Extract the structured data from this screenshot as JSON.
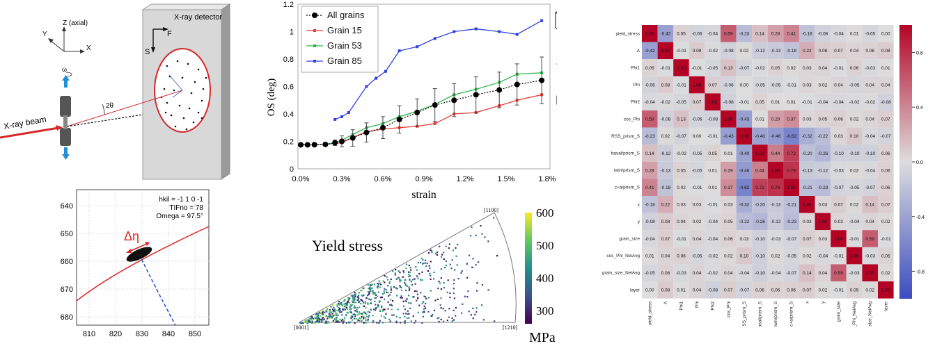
{
  "schematic": {
    "detector_title": "X-ray detector",
    "axis_z": "Z (axial)",
    "axis_y": "Y",
    "axis_x": "X",
    "omega": "ω",
    "beam_label": "X-ray beam",
    "two_theta": "2θ",
    "axis_f": "F",
    "axis_s": "S"
  },
  "spot_plot": {
    "info_hkil": "hkil = -1 1 0 -1",
    "info_tif": "TIFno = 78",
    "info_omega": "Omega = 97.5°",
    "delta_eta": "Δη",
    "x_ticks": [
      "810",
      "820",
      "830",
      "840",
      "850"
    ],
    "y_ticks": [
      "640",
      "650",
      "660",
      "670",
      "680"
    ]
  },
  "os_chart": {
    "ylabel": "OS (deg)",
    "xlabel": "strain",
    "chart_data": {
      "type": "line",
      "xlabel": "strain",
      "ylabel": "OS (deg)",
      "x_ticks": [
        "0.0%",
        "0.3%",
        "0.6%",
        "0.9%",
        "1.2%",
        "1.5%",
        "1.8%"
      ],
      "y_ticks": [
        "0",
        "0.2",
        "0.4",
        "0.6",
        "0.8",
        "1",
        "1.2"
      ],
      "xlim": [
        0,
        1.8
      ],
      "ylim": [
        0,
        1.2
      ],
      "series": [
        {
          "name": "All grains",
          "color": "#000000",
          "style": "dotted",
          "marker": "circle",
          "x": [
            0,
            0.05,
            0.1,
            0.18,
            0.25,
            0.3,
            0.38,
            0.48,
            0.6,
            0.72,
            0.85,
            0.98,
            1.12,
            1.28,
            1.45,
            1.58,
            1.76
          ],
          "y": [
            0.175,
            0.175,
            0.176,
            0.178,
            0.19,
            0.2,
            0.225,
            0.265,
            0.3,
            0.36,
            0.41,
            0.465,
            0.5,
            0.54,
            0.575,
            0.615,
            0.645
          ],
          "err": [
            0,
            0,
            0,
            0,
            0.02,
            0.04,
            0.06,
            0.07,
            0.08,
            0.1,
            0.1,
            0.12,
            0.12,
            0.13,
            0.13,
            0.15,
            0.17
          ]
        },
        {
          "name": "Grain 15",
          "color": "#e83a33",
          "marker": "square",
          "x": [
            0,
            0.05,
            0.1,
            0.18,
            0.25,
            0.3,
            0.38,
            0.48,
            0.6,
            0.72,
            0.85,
            0.98,
            1.12,
            1.28,
            1.45,
            1.58,
            1.76
          ],
          "y": [
            0.175,
            0.175,
            0.176,
            0.178,
            0.185,
            0.19,
            0.23,
            0.27,
            0.29,
            0.3,
            0.31,
            0.33,
            0.4,
            0.41,
            0.46,
            0.5,
            0.54
          ]
        },
        {
          "name": "Grain 53",
          "color": "#2bb34a",
          "marker": "square",
          "x": [
            0,
            0.05,
            0.1,
            0.18,
            0.25,
            0.3,
            0.38,
            0.48,
            0.6,
            0.72,
            0.85,
            0.98,
            1.12,
            1.28,
            1.45,
            1.58,
            1.76
          ],
          "y": [
            0.175,
            0.175,
            0.176,
            0.178,
            0.19,
            0.21,
            0.25,
            0.3,
            0.33,
            0.38,
            0.42,
            0.47,
            0.54,
            0.58,
            0.63,
            0.69,
            0.7
          ]
        },
        {
          "name": "Grain 85",
          "color": "#3040e0",
          "marker": "square",
          "x": [
            0.25,
            0.3,
            0.35,
            0.48,
            0.55,
            0.62,
            0.72,
            0.85,
            0.98,
            1.12,
            1.28,
            1.45,
            1.58,
            1.76
          ],
          "y": [
            0.36,
            0.38,
            0.41,
            0.6,
            0.66,
            0.71,
            0.86,
            0.89,
            0.95,
            1.0,
            1.02,
            1.0,
            0.98,
            1.08
          ]
        }
      ]
    }
  },
  "ipf": {
    "title": "Yield stress",
    "corner_top": "[1100]",
    "corner_left": "[0001]",
    "corner_right": "[1210]",
    "colorbar_ticks": [
      "600",
      "500",
      "400",
      "300"
    ],
    "colorbar_unit": "MPa",
    "colorbar_min": 260,
    "colorbar_max": 600
  },
  "heatmap": {
    "labels": [
      "yield_stress",
      "A",
      "Phi1",
      "Phi",
      "Phi2",
      "cos_Phi",
      "RSS_prism_S",
      "basal/prism_S",
      "twin/prism_S",
      "c+a/prism_S",
      "x",
      "y",
      "grain_size",
      "cos_Phi_NeiAvg",
      "grain_size_NeiAvg",
      "layer"
    ],
    "matrix": [
      [
        1.0,
        -0.42,
        0.05,
        -0.06,
        -0.04,
        0.59,
        -0.23,
        0.14,
        0.28,
        0.41,
        -0.18,
        -0.08,
        -0.04,
        0.01,
        -0.05,
        0.0
      ],
      [
        -0.42,
        1.0,
        -0.01,
        0.08,
        -0.02,
        -0.08,
        0.02,
        -0.12,
        -0.13,
        -0.18,
        0.22,
        0.08,
        0.07,
        0.04,
        0.06,
        0.08
      ],
      [
        0.05,
        -0.01,
        1.0,
        -0.01,
        -0.05,
        0.13,
        -0.07,
        -0.02,
        0.05,
        0.02,
        0.03,
        0.04,
        -0.01,
        0.06,
        -0.03,
        0.01
      ],
      [
        -0.06,
        0.08,
        -0.01,
        1.0,
        0.07,
        -0.06,
        0.0,
        -0.05,
        -0.05,
        -0.01,
        0.03,
        0.02,
        0.04,
        -0.05,
        0.04,
        0.04
      ],
      [
        -0.04,
        -0.02,
        -0.05,
        0.07,
        1.0,
        -0.08,
        -0.01,
        0.05,
        0.01,
        0.01,
        -0.01,
        -0.04,
        -0.04,
        -0.02,
        -0.02,
        -0.08
      ],
      [
        0.59,
        -0.08,
        0.13,
        -0.06,
        -0.08,
        1.0,
        -0.43,
        0.01,
        0.29,
        0.37,
        0.03,
        0.05,
        0.06,
        0.02,
        0.04,
        0.07
      ],
      [
        -0.23,
        0.02,
        -0.07,
        0.0,
        -0.01,
        -0.43,
        1.0,
        -0.4,
        -0.46,
        -0.62,
        -0.32,
        -0.22,
        0.03,
        0.1,
        -0.04,
        -0.07
      ],
      [
        0.14,
        -0.12,
        -0.02,
        -0.05,
        0.05,
        0.01,
        -0.4,
        1.0,
        0.44,
        0.72,
        -0.2,
        -0.26,
        -0.1,
        -0.1,
        -0.1,
        0.06
      ],
      [
        0.28,
        -0.13,
        0.05,
        -0.05,
        0.01,
        0.29,
        -0.46,
        0.44,
        1.0,
        0.79,
        -0.13,
        -0.12,
        -0.03,
        0.02,
        -0.04,
        0.06
      ],
      [
        0.41,
        -0.18,
        0.02,
        -0.01,
        0.01,
        0.37,
        -0.62,
        0.72,
        0.79,
        1.0,
        -0.21,
        -0.23,
        -0.07,
        -0.05,
        -0.07,
        0.06
      ],
      [
        -0.18,
        0.22,
        0.03,
        0.03,
        -0.01,
        0.03,
        -0.32,
        -0.2,
        -0.13,
        -0.21,
        1.0,
        0.03,
        0.07,
        0.02,
        0.14,
        0.07
      ],
      [
        -0.08,
        0.08,
        0.04,
        0.02,
        -0.04,
        0.05,
        -0.22,
        -0.26,
        -0.12,
        -0.23,
        0.03,
        1.0,
        0.03,
        -0.04,
        0.04,
        0.02
      ],
      [
        -0.04,
        0.07,
        -0.01,
        0.04,
        -0.04,
        0.06,
        0.03,
        -0.1,
        -0.03,
        -0.07,
        0.07,
        0.03,
        1.0,
        -0.01,
        0.59,
        -0.01
      ],
      [
        0.01,
        0.04,
        0.06,
        -0.05,
        -0.02,
        0.02,
        0.1,
        -0.1,
        0.02,
        -0.05,
        0.02,
        -0.04,
        -0.01,
        1.0,
        -0.03,
        0.05
      ],
      [
        -0.05,
        0.06,
        -0.03,
        0.04,
        -0.02,
        0.04,
        -0.04,
        -0.1,
        -0.04,
        -0.07,
        0.14,
        0.04,
        0.59,
        -0.03,
        1.0,
        0.02
      ],
      [
        0.0,
        0.08,
        0.01,
        0.04,
        -0.08,
        0.07,
        -0.07,
        0.06,
        0.06,
        0.06,
        0.07,
        0.02,
        -0.01,
        0.05,
        0.02,
        1.0
      ]
    ],
    "colorbar_ticks": [
      "0.8",
      "0.4",
      "0.0",
      "-0.4",
      "-0.8"
    ]
  }
}
